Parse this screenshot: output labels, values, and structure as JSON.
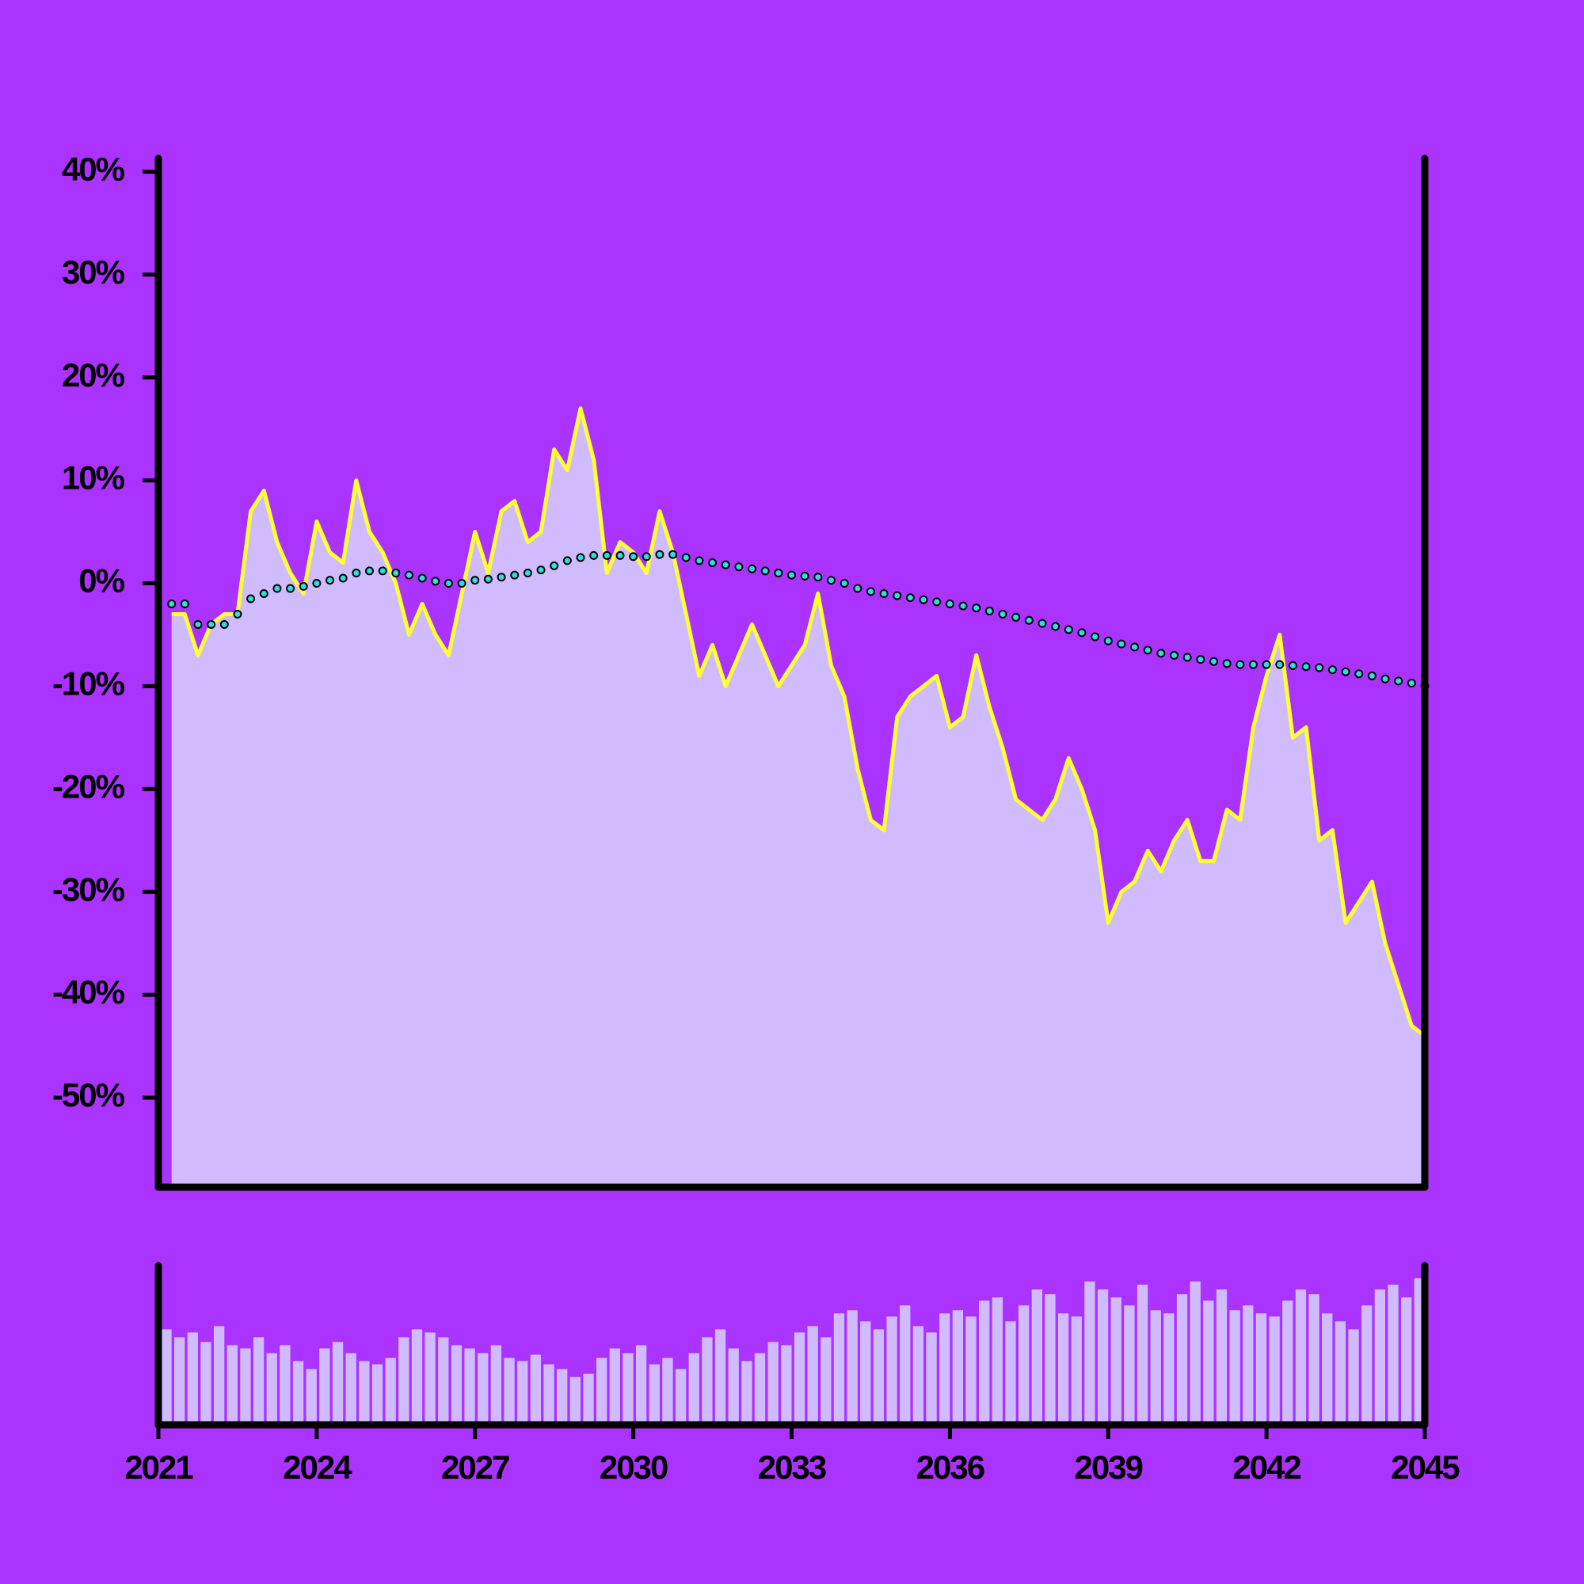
{
  "chart_data": [
    {
      "type": "line",
      "x": [
        2021.25,
        2021.5,
        2021.75,
        2022,
        2022.25,
        2022.5,
        2022.75,
        2023,
        2023.25,
        2023.5,
        2023.75,
        2024,
        2024.25,
        2024.5,
        2024.75,
        2025,
        2025.25,
        2025.5,
        2025.75,
        2026,
        2026.25,
        2026.5,
        2026.75,
        2027,
        2027.25,
        2027.5,
        2027.75,
        2028,
        2028.25,
        2028.5,
        2028.75,
        2029,
        2029.25,
        2029.5,
        2029.75,
        2030,
        2030.25,
        2030.5,
        2030.75,
        2031,
        2031.25,
        2031.5,
        2031.75,
        2032,
        2032.25,
        2032.5,
        2032.75,
        2033,
        2033.25,
        2033.5,
        2033.75,
        2034,
        2034.25,
        2034.5,
        2034.75,
        2035,
        2035.25,
        2035.5,
        2035.75,
        2036,
        2036.25,
        2036.5,
        2036.75,
        2037,
        2037.25,
        2037.5,
        2037.75,
        2038,
        2038.25,
        2038.5,
        2038.75,
        2039,
        2039.25,
        2039.5,
        2039.75,
        2040,
        2040.25,
        2040.5,
        2040.75,
        2041,
        2041.25,
        2041.5,
        2041.75,
        2042,
        2042.25,
        2042.5,
        2042.75,
        2043,
        2043.25,
        2043.5,
        2043.75,
        2044,
        2044.25,
        2044.5,
        2044.75,
        2045
      ],
      "series": [
        {
          "color": "#ffff33",
          "fill": "#d1bbff",
          "values": [
            -3,
            -3,
            -7,
            -4,
            -3,
            -3,
            7,
            9,
            4,
            1,
            -1,
            6,
            3,
            2,
            10,
            5,
            3,
            0,
            -5,
            -2,
            -5,
            -7,
            -1,
            5,
            1,
            7,
            8,
            4,
            5,
            13,
            11,
            17,
            12,
            1,
            4,
            3,
            1,
            7,
            3,
            -3,
            -9,
            -6,
            -10,
            -7,
            -4,
            -7,
            -10,
            -8,
            -6,
            -1,
            -8,
            -11,
            -18,
            -23,
            -24,
            -13,
            -11,
            -10,
            -9,
            -14,
            -13,
            -7,
            -12,
            -16,
            -21,
            -22,
            -23,
            -21,
            -17,
            -20,
            -24,
            -33,
            -30,
            -29,
            -26,
            -28,
            -25,
            -23,
            -27,
            -27,
            -22,
            -23,
            -14,
            -9,
            -5,
            -15,
            -14,
            -25,
            -24,
            -33,
            -31,
            -29,
            -35,
            -39,
            -43,
            -44
          ]
        },
        {
          "color": "#33dddd",
          "style": "dotted",
          "values": [
            -2,
            -2,
            -4,
            -4,
            -4,
            -3,
            -1.5,
            -1,
            -0.5,
            -0.5,
            -0.3,
            0,
            0.3,
            0.5,
            1,
            1.2,
            1.2,
            1,
            0.8,
            0.5,
            0.2,
            0,
            0,
            0.3,
            0.4,
            0.6,
            0.8,
            1,
            1.3,
            1.7,
            2.2,
            2.5,
            2.7,
            2.7,
            2.7,
            2.6,
            2.6,
            2.8,
            2.8,
            2.5,
            2.2,
            2,
            1.8,
            1.6,
            1.4,
            1.2,
            1,
            0.8,
            0.7,
            0.6,
            0.3,
            0,
            -0.5,
            -0.8,
            -1,
            -1.2,
            -1.4,
            -1.6,
            -1.8,
            -2,
            -2.2,
            -2.4,
            -2.7,
            -3,
            -3.3,
            -3.6,
            -3.9,
            -4.2,
            -4.5,
            -4.8,
            -5.2,
            -5.6,
            -5.9,
            -6.2,
            -6.5,
            -6.8,
            -7,
            -7.2,
            -7.4,
            -7.6,
            -7.8,
            -7.9,
            -7.9,
            -7.9,
            -7.9,
            -8,
            -8.1,
            -8.2,
            -8.4,
            -8.6,
            -8.8,
            -9,
            -9.3,
            -9.5,
            -9.7,
            -10
          ]
        }
      ],
      "xlim": [
        2021,
        2045
      ],
      "ylim": [
        -58.7,
        41.3
      ],
      "yticks": [
        {
          "value": 40,
          "label": "40%"
        },
        {
          "value": 30,
          "label": "30%"
        },
        {
          "value": 20,
          "label": "20%"
        },
        {
          "value": 10,
          "label": "10%"
        },
        {
          "value": 0,
          "label": "0%"
        },
        {
          "value": -10,
          "label": "-10%"
        },
        {
          "value": -20,
          "label": "-20%"
        },
        {
          "value": -30,
          "label": "-30%"
        },
        {
          "value": -40,
          "label": "-40%"
        },
        {
          "value": -50,
          "label": "-50%"
        }
      ]
    },
    {
      "type": "bar",
      "x": [
        2021.25,
        2021.5,
        2021.75,
        2022,
        2022.25,
        2022.5,
        2022.75,
        2023,
        2023.25,
        2023.5,
        2023.75,
        2024,
        2024.25,
        2024.5,
        2024.75,
        2025,
        2025.25,
        2025.5,
        2025.75,
        2026,
        2026.25,
        2026.5,
        2026.75,
        2027,
        2027.25,
        2027.5,
        2027.75,
        2028,
        2028.25,
        2028.5,
        2028.75,
        2029,
        2029.25,
        2029.5,
        2029.75,
        2030,
        2030.25,
        2030.5,
        2030.75,
        2031,
        2031.25,
        2031.5,
        2031.75,
        2032,
        2032.25,
        2032.5,
        2032.75,
        2033,
        2033.25,
        2033.5,
        2033.75,
        2034,
        2034.25,
        2034.5,
        2034.75,
        2035,
        2035.25,
        2035.5,
        2035.75,
        2036,
        2036.25,
        2036.5,
        2036.75,
        2037,
        2037.25,
        2037.5,
        2037.75,
        2038,
        2038.25,
        2038.5,
        2038.75,
        2039,
        2039.25,
        2039.5,
        2039.75,
        2040,
        2040.25,
        2040.5,
        2040.75,
        2041,
        2041.25,
        2041.5,
        2041.75,
        2042,
        2042.25,
        2042.5,
        2042.75,
        2043,
        2043.25,
        2043.5,
        2043.75,
        2044,
        2044.25,
        2044.5,
        2044.75,
        2045
      ],
      "values": [
        60,
        55,
        58,
        52,
        62,
        50,
        48,
        55,
        45,
        50,
        40,
        35,
        48,
        52,
        45,
        40,
        38,
        42,
        55,
        60,
        58,
        55,
        50,
        48,
        45,
        50,
        42,
        40,
        44,
        38,
        35,
        30,
        32,
        42,
        48,
        45,
        50,
        38,
        42,
        35,
        45,
        55,
        60,
        48,
        40,
        45,
        52,
        50,
        58,
        62,
        55,
        70,
        72,
        65,
        60,
        68,
        75,
        62,
        58,
        70,
        72,
        68,
        78,
        80,
        65,
        75,
        85,
        82,
        70,
        68,
        90,
        85,
        80,
        75,
        88,
        72,
        70,
        82,
        90,
        78,
        85,
        72,
        75,
        70,
        68,
        78,
        85,
        82,
        70,
        65,
        60,
        75,
        85,
        88,
        80,
        92
      ],
      "color": "#d1bbff",
      "xlim": [
        2021,
        2045
      ],
      "ylim": [
        0,
        100
      ],
      "xticks": [
        2021,
        2024,
        2027,
        2030,
        2033,
        2036,
        2039,
        2042,
        2045
      ]
    }
  ]
}
